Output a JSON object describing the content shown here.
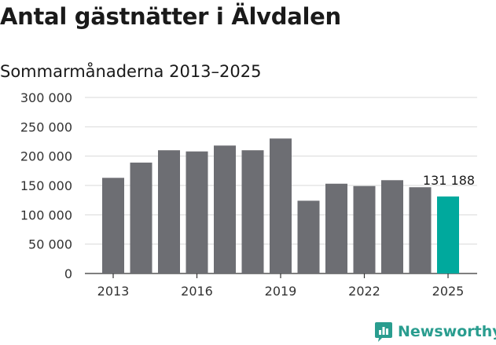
{
  "header": {
    "title": "Antal gästnätter i Älvdalen",
    "subtitle": "Sommarmånaderna 2013–2025"
  },
  "brand": {
    "name": "Newsworthy",
    "logo_icon": "newsworthy-logo-icon"
  },
  "colors": {
    "bar": "#6d6e73",
    "highlight": "#00a99d",
    "grid": "#d9d9d9",
    "axis": "#333333",
    "brand": "#2a9d8f"
  },
  "chart_data": {
    "type": "bar",
    "title": "Antal gästnätter i Älvdalen",
    "subtitle": "Sommarmånaderna 2013–2025",
    "categories": [
      "2013",
      "2014",
      "2015",
      "2016",
      "2017",
      "2018",
      "2019",
      "2020",
      "2021",
      "2022",
      "2023",
      "2024",
      "2025"
    ],
    "values": [
      163000,
      189000,
      210000,
      208000,
      218000,
      210000,
      230000,
      124000,
      153000,
      149000,
      159000,
      147000,
      131188
    ],
    "x_tick_labels": [
      "2013",
      "2016",
      "2019",
      "2022",
      "2025"
    ],
    "y_tick_labels": [
      "0",
      "50 000",
      "100 000",
      "150 000",
      "200 000",
      "250 000",
      "300 000"
    ],
    "ylim": [
      0,
      300000
    ],
    "grid": true,
    "highlight_category": "2025",
    "data_labels": [
      {
        "category": "2025",
        "label": "131 188"
      }
    ]
  }
}
